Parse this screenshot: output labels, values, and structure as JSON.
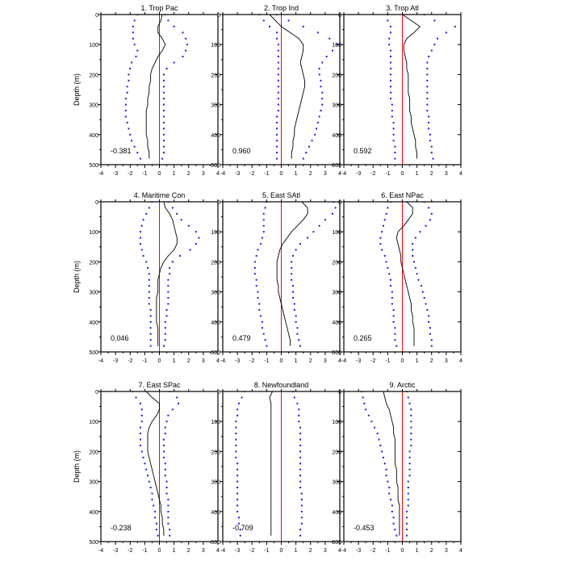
{
  "chart_data": {
    "type": "line",
    "layout": "3x3 panels",
    "ylabel": "Depth (m)",
    "ylim": [
      500,
      0
    ],
    "xlim": [
      -4,
      4
    ],
    "x_ticks": [
      "-4",
      "-3",
      "-2",
      "-1",
      "0",
      "1",
      "2",
      "3",
      "4"
    ],
    "y_ticks": [
      "0",
      "100",
      "200",
      "300",
      "400",
      "500"
    ],
    "depths": [
      0,
      20,
      40,
      60,
      80,
      100,
      120,
      140,
      160,
      180,
      200,
      220,
      240,
      260,
      280,
      300,
      320,
      340,
      360,
      380,
      400,
      420,
      440,
      460,
      480
    ],
    "colors": {
      "zero_line": "#ff0000",
      "bound_dots": "#1a1adc",
      "mean_line": "#000000"
    },
    "panels": [
      {
        "title": "1. Trop Pac",
        "value": "-0.381",
        "mean": [
          0.2,
          0.1,
          -0.1,
          -0.1,
          0.2,
          0.4,
          0.2,
          -0.1,
          -0.3,
          -0.5,
          -0.6,
          -0.6,
          -0.7,
          -0.7,
          -0.8,
          -0.8,
          -0.9,
          -0.9,
          -0.9,
          -0.9,
          -0.9,
          -0.8,
          -0.8,
          -0.7,
          -0.7
        ],
        "lower": [
          -1.5,
          -1.7,
          -1.8,
          -1.8,
          -1.8,
          -1.7,
          -1.5,
          -1.6,
          -1.9,
          -2.0,
          -2.1,
          -2.1,
          -2.2,
          -2.2,
          -2.3,
          -2.3,
          -2.3,
          -2.3,
          -2.2,
          -2.1,
          -2.0,
          -1.9,
          -1.7,
          -1.5,
          -1.3
        ],
        "upper": [
          0.4,
          0.6,
          1.0,
          1.6,
          1.8,
          1.9,
          1.8,
          1.6,
          1.0,
          0.5,
          0.3,
          0.3,
          0.3,
          0.3,
          0.3,
          0.3,
          0.3,
          0.3,
          0.3,
          0.3,
          0.3,
          0.3,
          0.3,
          0.3,
          0.2
        ]
      },
      {
        "title": "2. Trop Ind",
        "value": "0.960",
        "mean": [
          -0.8,
          -0.4,
          0.0,
          0.6,
          1.2,
          1.5,
          1.5,
          1.4,
          1.3,
          1.4,
          1.5,
          1.6,
          1.6,
          1.5,
          1.4,
          1.3,
          1.2,
          1.1,
          1.0,
          0.9,
          0.9,
          0.8,
          0.8,
          0.7,
          0.7
        ],
        "lower": [
          -1.5,
          -1.2,
          -0.8,
          -0.3,
          -0.3,
          -0.2,
          -0.2,
          -0.2,
          -0.2,
          -0.2,
          -0.2,
          -0.2,
          -0.2,
          -0.2,
          -0.2,
          -0.2,
          -0.2,
          -0.3,
          -0.3,
          -0.3,
          -0.3,
          -0.3,
          -0.3,
          -0.3,
          -0.3
        ],
        "upper": [
          -0.3,
          0.5,
          1.5,
          2.5,
          3.3,
          3.8,
          3.5,
          3.1,
          2.8,
          2.6,
          2.6,
          2.7,
          2.7,
          2.8,
          2.8,
          2.8,
          2.7,
          2.6,
          2.5,
          2.4,
          2.3,
          2.1,
          1.9,
          1.7,
          1.5
        ]
      },
      {
        "title": "3. Trop Atl",
        "value": "0.592",
        "mean": [
          0.0,
          0.6,
          1.2,
          0.8,
          0.3,
          0.1,
          0.1,
          0.2,
          0.3,
          0.3,
          0.4,
          0.4,
          0.4,
          0.4,
          0.5,
          0.5,
          0.5,
          0.6,
          0.6,
          0.7,
          0.8,
          0.9,
          0.9,
          1.0,
          1.0
        ],
        "lower": [
          -1.0,
          -1.0,
          -0.8,
          -0.8,
          -0.9,
          -0.9,
          -0.8,
          -0.8,
          -0.8,
          -0.8,
          -0.8,
          -0.8,
          -0.8,
          -0.8,
          -0.8,
          -0.7,
          -0.7,
          -0.7,
          -0.6,
          -0.6,
          -0.6,
          -0.6,
          -0.5,
          -0.5,
          -0.5
        ],
        "upper": [
          1.5,
          2.2,
          3.6,
          3.0,
          2.4,
          2.2,
          2.0,
          1.8,
          1.7,
          1.7,
          1.7,
          1.7,
          1.7,
          1.7,
          1.7,
          1.7,
          1.7,
          1.8,
          1.8,
          1.8,
          1.9,
          1.9,
          2.0,
          2.0,
          2.1
        ]
      },
      {
        "title": "4. Maritime Con",
        "value": "0.046",
        "mean": [
          0.3,
          0.4,
          0.7,
          0.9,
          1.0,
          1.1,
          1.2,
          1.2,
          1.0,
          0.6,
          0.3,
          0.1,
          0.0,
          -0.1,
          -0.1,
          -0.1,
          -0.2,
          -0.2,
          -0.2,
          -0.2,
          -0.2,
          -0.1,
          -0.1,
          -0.1,
          -0.1
        ],
        "lower": [
          -0.5,
          -0.7,
          -0.9,
          -1.1,
          -1.2,
          -1.3,
          -1.3,
          -1.3,
          -1.2,
          -1.1,
          -0.9,
          -0.8,
          -0.7,
          -0.7,
          -0.7,
          -0.7,
          -0.7,
          -0.7,
          -0.6,
          -0.6,
          -0.6,
          -0.6,
          -0.6,
          -0.6,
          -0.6
        ],
        "upper": [
          0.6,
          0.9,
          1.2,
          1.5,
          2.0,
          2.5,
          2.7,
          2.5,
          2.1,
          1.4,
          0.9,
          0.7,
          0.7,
          0.6,
          0.6,
          0.6,
          0.6,
          0.6,
          0.5,
          0.5,
          0.4,
          0.4,
          0.4,
          0.4,
          0.3
        ]
      },
      {
        "title": "5. East SAtl",
        "value": "0.479",
        "mean": [
          1.4,
          1.8,
          1.8,
          1.5,
          1.1,
          0.7,
          0.4,
          0.1,
          -0.1,
          -0.2,
          -0.3,
          -0.3,
          -0.3,
          -0.3,
          -0.2,
          -0.2,
          -0.1,
          0.0,
          0.1,
          0.2,
          0.3,
          0.4,
          0.5,
          0.6,
          0.6
        ],
        "lower": [
          -1.0,
          -1.1,
          -1.2,
          -1.2,
          -1.2,
          -1.2,
          -1.3,
          -1.4,
          -1.6,
          -1.7,
          -1.8,
          -1.8,
          -1.8,
          -1.7,
          -1.7,
          -1.6,
          -1.6,
          -1.5,
          -1.5,
          -1.4,
          -1.3,
          -1.3,
          -1.2,
          -1.1,
          -1.0
        ],
        "upper": [
          3.6,
          3.7,
          3.5,
          3.0,
          2.6,
          2.2,
          1.8,
          1.3,
          1.0,
          0.8,
          0.7,
          0.7,
          0.7,
          0.7,
          0.8,
          0.8,
          0.8,
          0.9,
          0.9,
          1.0,
          1.0,
          1.1,
          1.1,
          1.2,
          1.3
        ]
      },
      {
        "title": "6. East NPac",
        "value": "0.265",
        "mean": [
          0.3,
          0.7,
          0.7,
          0.4,
          0.1,
          -0.3,
          -0.4,
          -0.3,
          -0.2,
          -0.1,
          -0.1,
          0.0,
          0.1,
          0.2,
          0.3,
          0.4,
          0.5,
          0.6,
          0.6,
          0.7,
          0.7,
          0.8,
          0.8,
          0.8,
          0.8
        ],
        "lower": [
          -0.8,
          -1.0,
          -1.1,
          -1.2,
          -1.3,
          -1.4,
          -1.5,
          -1.5,
          -1.4,
          -1.2,
          -1.1,
          -1.0,
          -0.9,
          -0.8,
          -0.8,
          -0.7,
          -0.7,
          -0.7,
          -0.6,
          -0.6,
          -0.6,
          -0.5,
          -0.5,
          -0.5,
          -0.4
        ],
        "upper": [
          1.5,
          1.8,
          2.0,
          1.9,
          1.6,
          1.2,
          0.9,
          0.7,
          0.7,
          0.7,
          0.8,
          0.9,
          1.0,
          1.1,
          1.3,
          1.4,
          1.5,
          1.6,
          1.7,
          1.8,
          1.8,
          1.9,
          1.9,
          2.0,
          2.0
        ]
      },
      {
        "title": "7. East SPac",
        "value": "-0.238",
        "mean": [
          -0.9,
          -0.5,
          0.0,
          0.0,
          -0.2,
          -0.5,
          -0.7,
          -0.8,
          -0.8,
          -0.8,
          -0.8,
          -0.7,
          -0.6,
          -0.5,
          -0.4,
          -0.3,
          -0.2,
          -0.1,
          0.0,
          0.1,
          0.1,
          0.2,
          0.2,
          0.3,
          0.3
        ],
        "lower": [
          -1.8,
          -1.6,
          -1.3,
          -1.2,
          -1.2,
          -1.2,
          -1.3,
          -1.3,
          -1.3,
          -1.3,
          -1.2,
          -1.1,
          -1.0,
          -0.9,
          -0.8,
          -0.7,
          -0.6,
          -0.5,
          -0.5,
          -0.4,
          -0.3,
          -0.3,
          -0.2,
          -0.2,
          -0.1
        ],
        "upper": [
          0.7,
          1.2,
          1.3,
          0.9,
          0.6,
          0.5,
          0.4,
          0.4,
          0.3,
          0.3,
          0.3,
          0.3,
          0.4,
          0.4,
          0.4,
          0.5,
          0.5,
          0.5,
          0.6,
          0.6,
          0.6,
          0.6,
          0.6,
          0.7,
          0.7
        ]
      },
      {
        "title": "8. Newfoundland",
        "value": "-0.709",
        "mean": [
          -0.6,
          -0.8,
          -0.7,
          -0.7,
          -0.7,
          -0.7,
          -0.7,
          -0.7,
          -0.7,
          -0.7,
          -0.7,
          -0.7,
          -0.7,
          -0.7,
          -0.7,
          -0.7,
          -0.7,
          -0.7,
          -0.7,
          -0.7,
          -0.7,
          -0.7,
          -0.7,
          -0.7,
          -0.7
        ],
        "lower": [
          -2.5,
          -2.7,
          -2.9,
          -3.0,
          -3.0,
          -3.1,
          -3.1,
          -3.1,
          -3.1,
          -3.1,
          -3.1,
          -3.1,
          -3.0,
          -3.0,
          -3.0,
          -3.0,
          -3.0,
          -3.0,
          -3.0,
          -3.0,
          -3.0,
          -2.9,
          -2.9,
          -2.8,
          -2.8
        ],
        "upper": [
          0.8,
          0.9,
          1.1,
          1.2,
          1.2,
          1.2,
          1.3,
          1.3,
          1.3,
          1.3,
          1.3,
          1.3,
          1.3,
          1.3,
          1.3,
          1.3,
          1.3,
          1.4,
          1.4,
          1.4,
          1.4,
          1.4,
          1.4,
          1.3,
          1.3
        ]
      },
      {
        "title": "9. Arctic",
        "value": "-0.453",
        "mean": [
          -1.3,
          -1.2,
          -1.1,
          -0.9,
          -0.8,
          -0.7,
          -0.6,
          -0.6,
          -0.5,
          -0.5,
          -0.5,
          -0.5,
          -0.5,
          -0.4,
          -0.4,
          -0.4,
          -0.3,
          -0.3,
          -0.3,
          -0.2,
          -0.2,
          -0.2,
          -0.2,
          -0.2,
          -0.2
        ],
        "lower": [
          -2.8,
          -2.7,
          -2.6,
          -2.5,
          -2.3,
          -2.1,
          -1.9,
          -1.7,
          -1.6,
          -1.5,
          -1.4,
          -1.3,
          -1.2,
          -1.1,
          -1.1,
          -1.0,
          -0.9,
          -0.9,
          -0.8,
          -0.7,
          -0.7,
          -0.6,
          -0.6,
          -0.5,
          -0.4
        ],
        "upper": [
          0.3,
          0.4,
          0.5,
          0.6,
          0.6,
          0.6,
          0.6,
          0.6,
          0.6,
          0.6,
          0.5,
          0.5,
          0.5,
          0.5,
          0.5,
          0.4,
          0.4,
          0.4,
          0.4,
          0.4,
          0.3,
          0.3,
          0.3,
          0.3,
          0.3
        ]
      }
    ]
  }
}
